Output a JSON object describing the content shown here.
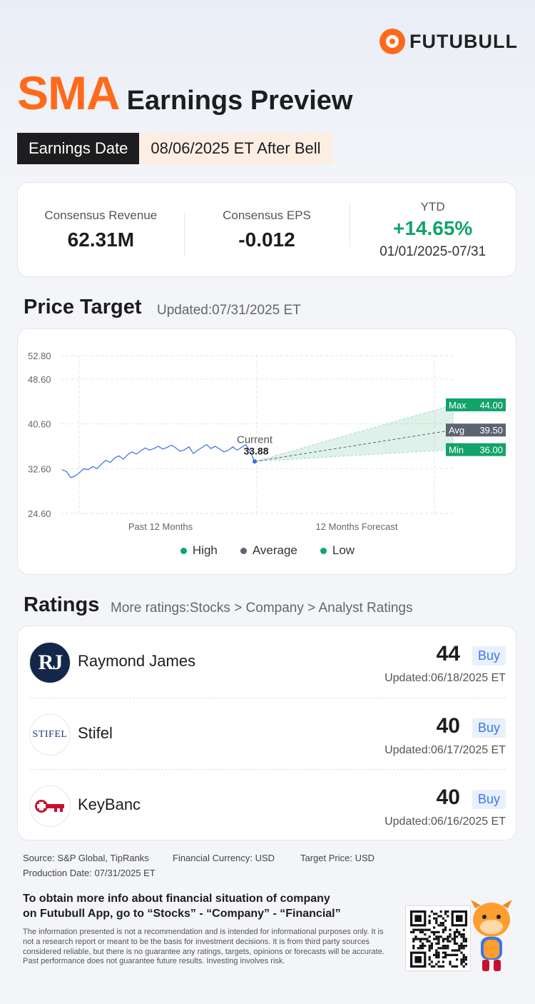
{
  "brand": {
    "name": "FUTUBULL",
    "accent": "#ff6a1a"
  },
  "header": {
    "ticker": "SMA",
    "title": "Earnings Preview"
  },
  "earnings_date": {
    "label": "Earnings Date",
    "value": "08/06/2025 ET After Bell"
  },
  "consensus": {
    "revenue_label": "Consensus Revenue",
    "revenue_value": "62.31M",
    "eps_label": "Consensus EPS",
    "eps_value": "-0.012",
    "ytd_label": "YTD",
    "ytd_value": "+14.65%",
    "ytd_range": "01/01/2025-07/31"
  },
  "price_target": {
    "title": "Price Target",
    "updated": "Updated:07/31/2025 ET",
    "current_label": "Current",
    "current_value": "33.88",
    "max_label": "Max",
    "max_value": "44.00",
    "avg_label": "Avg",
    "avg_value": "39.50",
    "min_label": "Min",
    "min_value": "36.00",
    "x_past": "Past 12 Months",
    "x_forecast": "12 Months Forecast",
    "legend": {
      "high": "High",
      "average": "Average",
      "low": "Low"
    },
    "colors": {
      "high": "#12a36b",
      "average": "#5c6472",
      "low": "#12a36b",
      "line": "#3a6fe0"
    }
  },
  "chart_data": {
    "type": "line",
    "yticks": [
      "52.80",
      "48.60",
      "40.60",
      "32.60",
      "24.60"
    ],
    "ylim": [
      24.6,
      52.8
    ],
    "series": [
      {
        "values": [
          32.4,
          32.1,
          31.0,
          31.3,
          31.9,
          32.6,
          32.4,
          33.0,
          32.6,
          33.4,
          34.1,
          33.7,
          34.5,
          34.9,
          34.3,
          35.1,
          35.6,
          35.2,
          35.8,
          36.3,
          35.9,
          36.2,
          36.6,
          36.1,
          36.4,
          36.8,
          36.3,
          35.7,
          36.0,
          36.5,
          35.3,
          35.9,
          36.4,
          36.9,
          36.2,
          36.6,
          36.1,
          35.6,
          35.9,
          36.5,
          35.9,
          36.4,
          36.9,
          35.6,
          33.88
        ]
      }
    ],
    "forecast": {
      "current": 33.88,
      "high": 44.0,
      "average": 39.5,
      "low": 36.0
    }
  },
  "ratings": {
    "title": "Ratings",
    "more": "More ratings:Stocks > Company > Analyst Ratings",
    "items": [
      {
        "firm": "Raymond James",
        "logo_text": "RJ",
        "target": "44",
        "rating": "Buy",
        "updated": "Updated:06/18/2025 ET"
      },
      {
        "firm": "Stifel",
        "logo_text": "STIFEL",
        "target": "40",
        "rating": "Buy",
        "updated": "Updated:06/17/2025 ET"
      },
      {
        "firm": "KeyBanc",
        "logo_text": "",
        "target": "40",
        "rating": "Buy",
        "updated": "Updated:06/16/2025 ET"
      }
    ]
  },
  "footer": {
    "source": "Source: S&P Global, TipRanks",
    "currency": "Financial Currency: USD",
    "target_price": "Target Price: USD",
    "production": "Production Date: 07/31/2025 ET",
    "cta_line1": "To obtain more info about financial situation of company",
    "cta_line2": "on Futubull App, go to “Stocks” - “Company” - “Financial”",
    "disclaimer": "The information presented is not a recommendation and is intended for informational purposes only. It is not a research report or meant to be the basis for investment decisions. It is from third party sources considered reliable, but there is no guarantee any ratings, targets, opinions or forecasts will be accurate. Past performance does not guarantee future results. Investing involves risk."
  }
}
